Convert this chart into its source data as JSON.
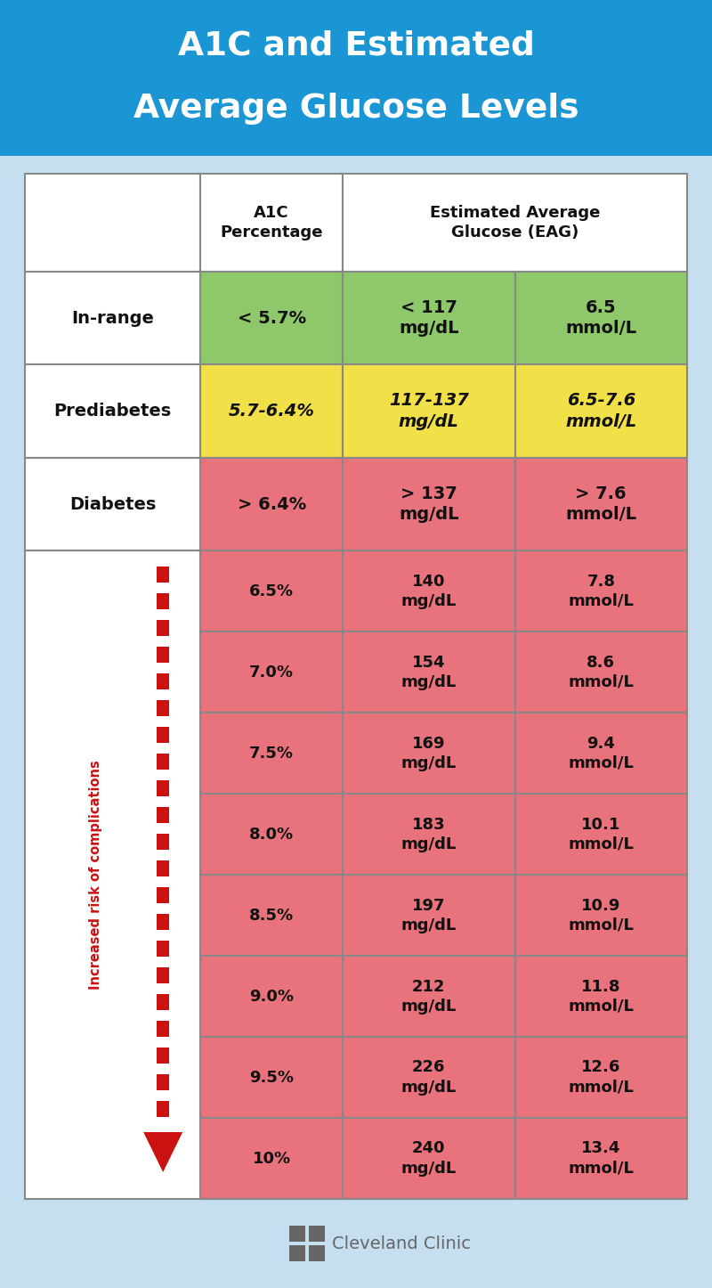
{
  "title_line1": "A1C and Estimated",
  "title_line2": "Average Glucose Levels",
  "title_bg": "#1a96d4",
  "title_color": "white",
  "bg_color": "#c5dff0",
  "header_row_labels": [
    "",
    "A1C\nPercentage",
    "Estimated Average\nGlucose (EAG)"
  ],
  "summary_rows": [
    {
      "label": "In-range",
      "a1c": "< 5.7%",
      "mgdl": "< 117\nmg/dL",
      "mmol": "6.5\nmmol/L",
      "label_bg": "white",
      "data_bg": "#8ec86a",
      "italic": false
    },
    {
      "label": "Prediabetes",
      "a1c": "5.7-6.4%",
      "mgdl": "117-137\nmg/dL",
      "mmol": "6.5-7.6\nmmol/L",
      "label_bg": "white",
      "data_bg": "#f2e048",
      "italic": true
    },
    {
      "label": "Diabetes",
      "a1c": "> 6.4%",
      "mgdl": "> 137\nmg/dL",
      "mmol": "> 7.6\nmmol/L",
      "label_bg": "white",
      "data_bg": "#e8737c",
      "italic": false
    }
  ],
  "detail_rows": [
    {
      "a1c": "6.5%",
      "mgdl": "140\nmg/dL",
      "mmol": "7.8\nmmol/L"
    },
    {
      "a1c": "7.0%",
      "mgdl": "154\nmg/dL",
      "mmol": "8.6\nmmol/L"
    },
    {
      "a1c": "7.5%",
      "mgdl": "169\nmg/dL",
      "mmol": "9.4\nmmol/L"
    },
    {
      "a1c": "8.0%",
      "mgdl": "183\nmg/dL",
      "mmol": "10.1\nmmol/L"
    },
    {
      "a1c": "8.5%",
      "mgdl": "197\nmg/dL",
      "mmol": "10.9\nmmol/L"
    },
    {
      "a1c": "9.0%",
      "mgdl": "212\nmg/dL",
      "mmol": "11.8\nmmol/L"
    },
    {
      "a1c": "9.5%",
      "mgdl": "226\nmg/dL",
      "mmol": "12.6\nmmol/L"
    },
    {
      "a1c": "10%",
      "mgdl": "240\nmg/dL",
      "mmol": "13.4\nmmol/L"
    }
  ],
  "detail_bg": "#e8737c",
  "risk_label": "Increased risk of complications",
  "risk_color": "#cc1111",
  "arrow_color": "#cc1111",
  "border_color": "#888888",
  "text_color": "#111111",
  "footer_text": "Cleveland Clinic",
  "footer_color": "#666666",
  "title_fontsize": 27,
  "header_fontsize": 13,
  "cell_fontsize": 14,
  "detail_fontsize": 13
}
